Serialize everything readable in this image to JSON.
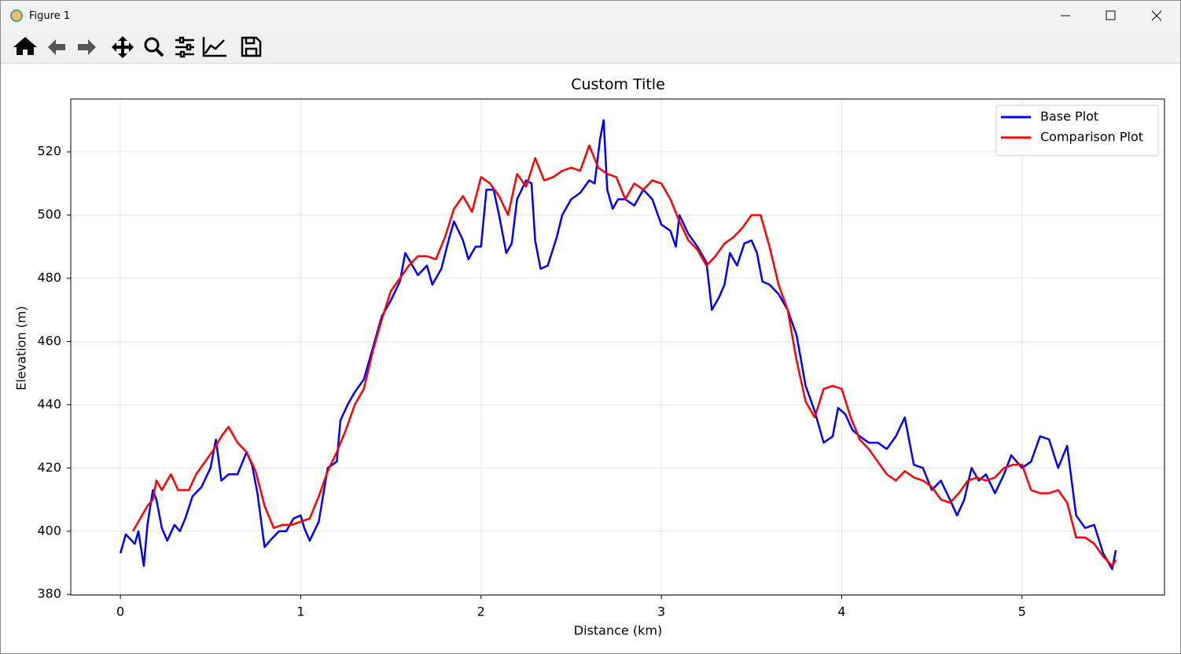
{
  "window": {
    "title": "Figure 1"
  },
  "chart_data": {
    "type": "line",
    "title": "Custom Title",
    "xlabel": "Distance (km)",
    "ylabel": "Elevation (m)",
    "xlim": [
      -0.275,
      5.79
    ],
    "ylim": [
      379.8,
      536.7
    ],
    "xticks": [
      0,
      1,
      2,
      3,
      4,
      5
    ],
    "yticks": [
      380,
      400,
      420,
      440,
      460,
      480,
      500,
      520
    ],
    "grid": true,
    "legend": "upper right",
    "series": [
      {
        "name": "Base Plot",
        "color": "#0000ff",
        "x": [
          0,
          0.03,
          0.08,
          0.1,
          0.13,
          0.15,
          0.18,
          0.2,
          0.23,
          0.26,
          0.3,
          0.33,
          0.36,
          0.4,
          0.45,
          0.5,
          0.53,
          0.56,
          0.6,
          0.65,
          0.7,
          0.73,
          0.76,
          0.8,
          0.83,
          0.88,
          0.92,
          0.96,
          1.0,
          1.02,
          1.05,
          1.1,
          1.15,
          1.2,
          1.22,
          1.26,
          1.3,
          1.35,
          1.4,
          1.45,
          1.5,
          1.55,
          1.58,
          1.62,
          1.65,
          1.7,
          1.73,
          1.78,
          1.82,
          1.85,
          1.9,
          1.93,
          1.97,
          2.0,
          2.03,
          2.07,
          2.1,
          2.14,
          2.17,
          2.2,
          2.25,
          2.28,
          2.3,
          2.33,
          2.37,
          2.42,
          2.45,
          2.5,
          2.55,
          2.6,
          2.63,
          2.66,
          2.68,
          2.7,
          2.73,
          2.76,
          2.8,
          2.85,
          2.9,
          2.95,
          3.0,
          3.05,
          3.08,
          3.1,
          3.15,
          3.2,
          3.25,
          3.28,
          3.32,
          3.35,
          3.38,
          3.42,
          3.46,
          3.5,
          3.53,
          3.56,
          3.6,
          3.65,
          3.7,
          3.75,
          3.8,
          3.85,
          3.9,
          3.95,
          3.98,
          4.02,
          4.06,
          4.1,
          4.15,
          4.2,
          4.25,
          4.3,
          4.35,
          4.4,
          4.45,
          4.5,
          4.55,
          4.6,
          4.64,
          4.68,
          4.72,
          4.76,
          4.8,
          4.85,
          4.9,
          4.94,
          5.0,
          5.05,
          5.1,
          5.15,
          5.2,
          5.25,
          5.3,
          5.35,
          5.4,
          5.45,
          5.5,
          5.52
        ],
        "values": [
          393,
          399,
          396,
          400,
          389,
          402,
          413,
          410,
          401,
          397,
          402,
          400,
          404,
          411,
          414,
          420,
          429,
          416,
          418,
          418,
          425,
          421,
          412,
          395,
          397,
          400,
          400,
          404,
          405,
          401,
          397,
          403,
          420,
          422,
          435,
          440,
          444,
          448,
          458,
          468,
          473,
          479,
          488,
          484,
          481,
          484,
          478,
          483,
          492,
          498,
          492,
          486,
          490,
          490,
          508,
          508,
          500,
          488,
          491,
          505,
          511,
          510,
          492,
          483,
          484,
          493,
          500,
          505,
          507,
          511,
          510,
          524,
          530,
          508,
          502,
          505,
          505,
          503,
          508,
          505,
          497,
          495,
          490,
          500,
          494,
          490,
          485,
          470,
          474,
          478,
          488,
          484,
          491,
          492,
          488,
          479,
          478,
          475,
          470,
          462,
          446,
          438,
          428,
          430,
          439,
          437,
          432,
          430,
          428,
          428,
          426,
          430,
          436,
          421,
          420,
          413,
          416,
          410,
          405,
          410,
          420,
          416,
          418,
          412,
          418,
          424,
          420,
          422,
          430,
          429,
          420,
          427,
          405,
          401,
          402,
          393,
          388,
          394
        ]
      },
      {
        "name": "Comparison Plot",
        "color": "#ff0000",
        "x": [
          0.07,
          0.1,
          0.15,
          0.18,
          0.2,
          0.23,
          0.28,
          0.32,
          0.38,
          0.42,
          0.47,
          0.52,
          0.56,
          0.6,
          0.65,
          0.7,
          0.75,
          0.8,
          0.85,
          0.9,
          0.95,
          1.0,
          1.05,
          1.1,
          1.15,
          1.2,
          1.25,
          1.3,
          1.35,
          1.4,
          1.45,
          1.5,
          1.55,
          1.6,
          1.65,
          1.7,
          1.75,
          1.8,
          1.85,
          1.9,
          1.95,
          2.0,
          2.05,
          2.1,
          2.15,
          2.2,
          2.25,
          2.3,
          2.35,
          2.4,
          2.45,
          2.5,
          2.55,
          2.6,
          2.65,
          2.7,
          2.75,
          2.8,
          2.85,
          2.9,
          2.95,
          3.0,
          3.05,
          3.1,
          3.15,
          3.2,
          3.25,
          3.3,
          3.35,
          3.4,
          3.45,
          3.5,
          3.55,
          3.6,
          3.65,
          3.7,
          3.75,
          3.8,
          3.85,
          3.9,
          3.95,
          4.0,
          4.05,
          4.1,
          4.15,
          4.2,
          4.25,
          4.3,
          4.35,
          4.4,
          4.45,
          4.5,
          4.55,
          4.6,
          4.65,
          4.7,
          4.75,
          4.8,
          4.85,
          4.9,
          4.95,
          5.0,
          5.05,
          5.1,
          5.15,
          5.2,
          5.25,
          5.3,
          5.35,
          5.4,
          5.45,
          5.5,
          5.52
        ],
        "values": [
          400,
          403,
          408,
          410,
          416,
          413,
          418,
          413,
          413,
          418,
          422,
          426,
          430,
          433,
          428,
          425,
          419,
          408,
          401,
          402,
          402,
          403,
          404,
          411,
          419,
          425,
          432,
          440,
          445,
          457,
          467,
          476,
          480,
          484,
          487,
          487,
          486,
          493,
          502,
          506,
          501,
          512,
          510,
          506,
          500,
          513,
          509,
          518,
          511,
          512,
          514,
          515,
          514,
          522,
          515,
          513,
          512,
          505,
          510,
          508,
          511,
          510,
          505,
          498,
          492,
          489,
          484,
          487,
          491,
          493,
          496,
          500,
          500,
          490,
          478,
          470,
          454,
          441,
          436,
          445,
          446,
          445,
          436,
          429,
          426,
          422,
          418,
          416,
          419,
          417,
          416,
          414,
          410,
          409,
          412,
          416,
          417,
          416,
          417,
          420,
          421,
          421,
          413,
          412,
          412,
          413,
          409,
          398,
          398,
          396,
          392,
          389,
          391
        ]
      }
    ]
  }
}
